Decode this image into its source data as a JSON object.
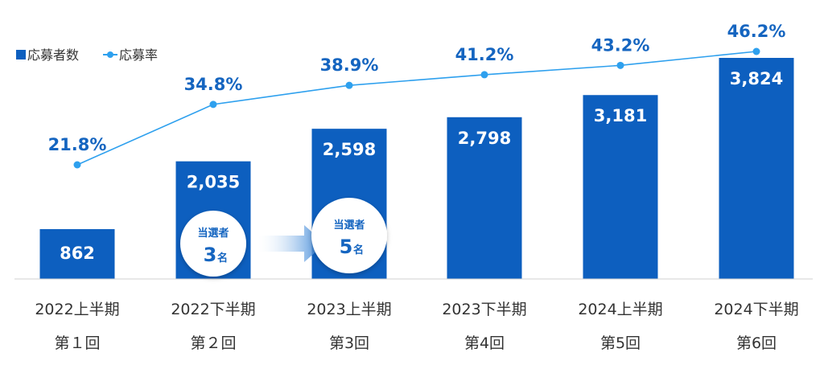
{
  "chart_data": {
    "type": "bar",
    "categories": [
      "2022上半期",
      "2022下半期",
      "2023上半期",
      "2023下半期",
      "2024上半期",
      "2024下半期"
    ],
    "subcategories": [
      "第１回",
      "第２回",
      "第3回",
      "第4回",
      "第5回",
      "第6回"
    ],
    "series": [
      {
        "name": "応募者数",
        "type": "bar",
        "values": [
          862,
          2035,
          2598,
          2798,
          3181,
          3824
        ],
        "labels": [
          "862",
          "2,035",
          "2,598",
          "2,798",
          "3,181",
          "3,824"
        ]
      },
      {
        "name": "応募率",
        "type": "line",
        "values": [
          21.8,
          34.8,
          38.9,
          41.2,
          43.2,
          46.2
        ],
        "labels": [
          "21.8%",
          "34.8%",
          "38.9%",
          "41.2%",
          "43.2%",
          "46.2%"
        ]
      }
    ],
    "legend_position": "top-left",
    "grid": false,
    "annotations": [
      {
        "category": "2022下半期",
        "line1": "当選者",
        "number": "3",
        "unit": "名"
      },
      {
        "category": "2023上半期",
        "line1": "当選者",
        "number": "5",
        "unit": "名"
      }
    ],
    "colors": {
      "bar": "#0d5fbf",
      "line": "#2ea0ee",
      "rate_label": "#1565c0"
    }
  }
}
